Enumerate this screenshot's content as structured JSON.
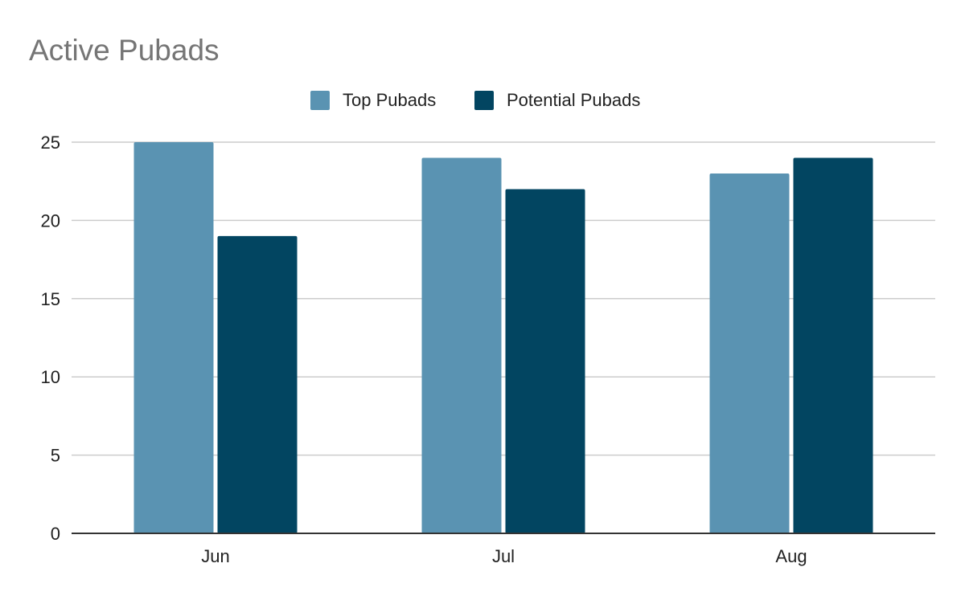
{
  "chart_data": {
    "type": "bar",
    "title": "Active Pubads",
    "xlabel": "",
    "ylabel": "",
    "categories": [
      "Jun",
      "Jul",
      "Aug"
    ],
    "series": [
      {
        "name": "Top Pubads",
        "color": "#5a93b2",
        "values": [
          25,
          24,
          23
        ]
      },
      {
        "name": "Potential Pubads",
        "color": "#024561",
        "values": [
          19,
          22,
          24
        ]
      }
    ],
    "ylim": [
      0,
      25
    ],
    "yticks": [
      "0",
      "5",
      "10",
      "15",
      "20",
      "25"
    ],
    "grid": true,
    "legend_position": "top-center"
  }
}
